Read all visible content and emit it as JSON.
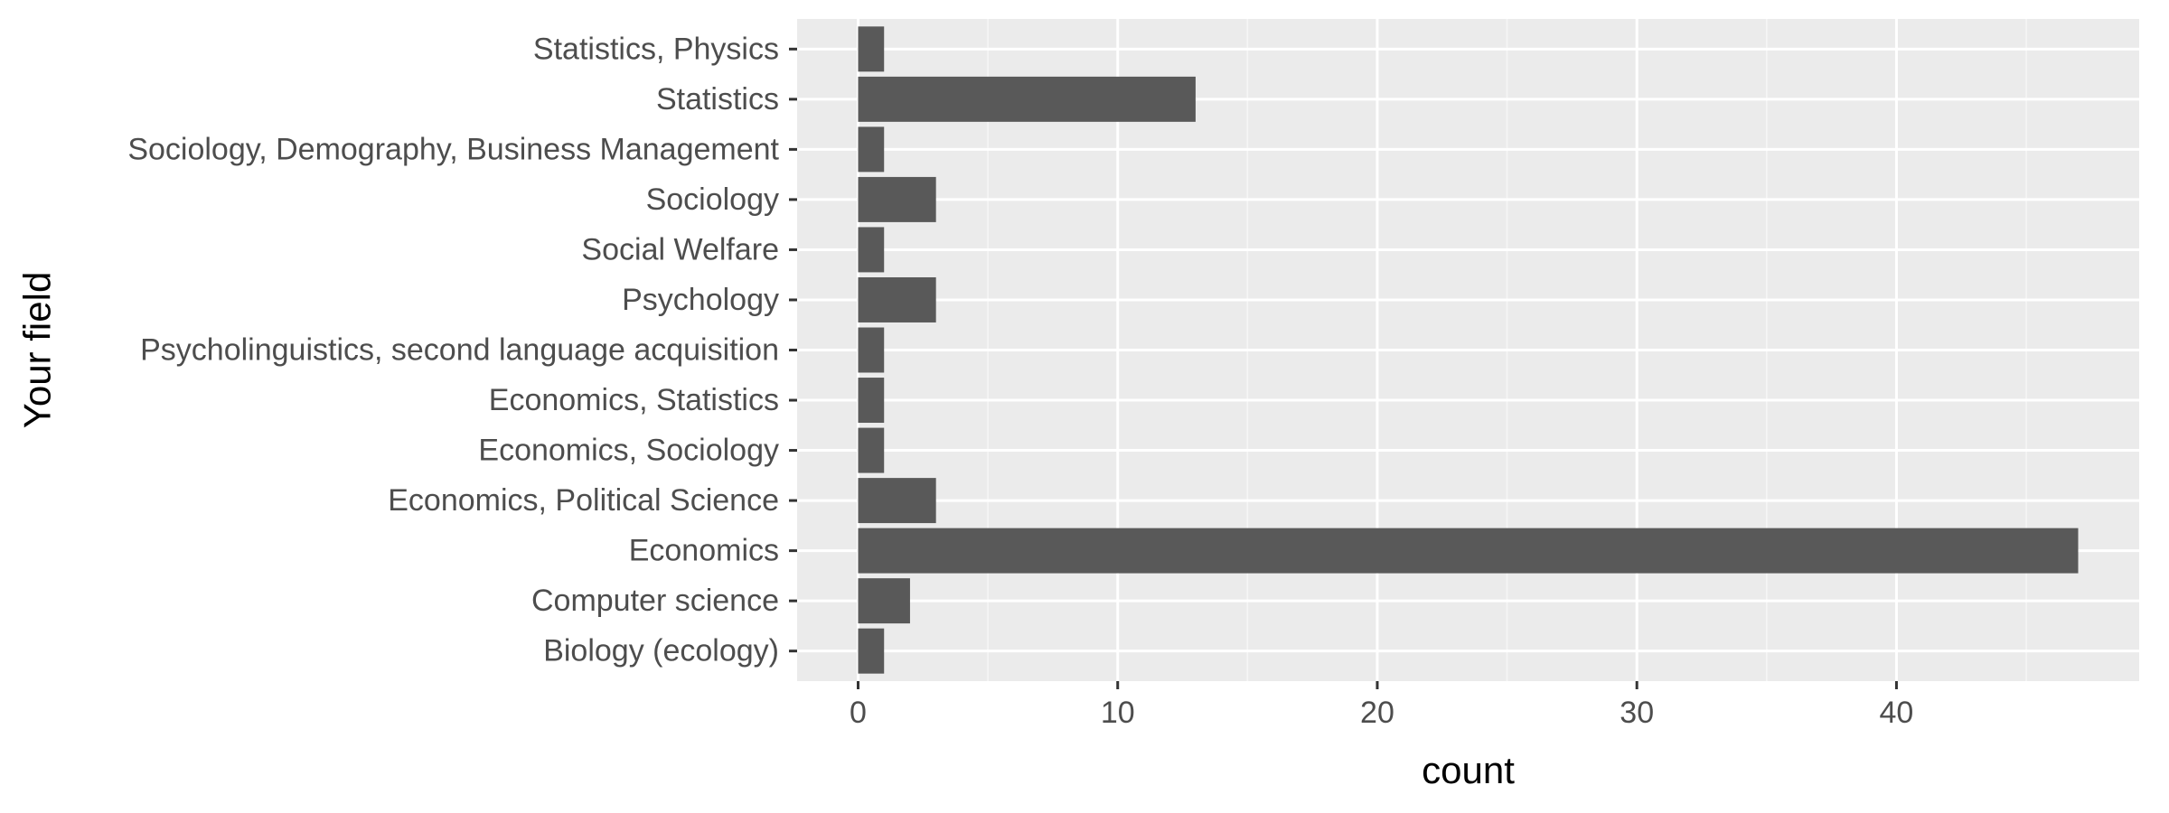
{
  "chart_data": {
    "type": "bar",
    "orientation": "horizontal",
    "title": "",
    "xlabel": "count",
    "ylabel": "Your field",
    "categories": [
      "Biology (ecology)",
      "Computer science",
      "Economics",
      "Economics, Political Science",
      "Economics, Sociology",
      "Economics, Statistics",
      "Psycholinguistics, second language acquisition",
      "Psychology",
      "Social Welfare",
      "Sociology",
      "Sociology, Demography, Business Management",
      "Statistics",
      "Statistics, Physics"
    ],
    "values": [
      1,
      2,
      47,
      3,
      1,
      1,
      1,
      3,
      1,
      3,
      1,
      13,
      1
    ],
    "x_ticks": [
      0,
      10,
      20,
      30,
      40
    ],
    "xlim": [
      -2.35,
      49.35
    ],
    "grid": true,
    "legend": "none",
    "colors": {
      "bar": "#595959",
      "panel": "#ebebeb",
      "grid_major": "#ffffff",
      "grid_minor": "#f5f5f5",
      "tick_text": "#4d4d4d",
      "tick_mark": "#333333",
      "title_text": "#000000"
    }
  }
}
